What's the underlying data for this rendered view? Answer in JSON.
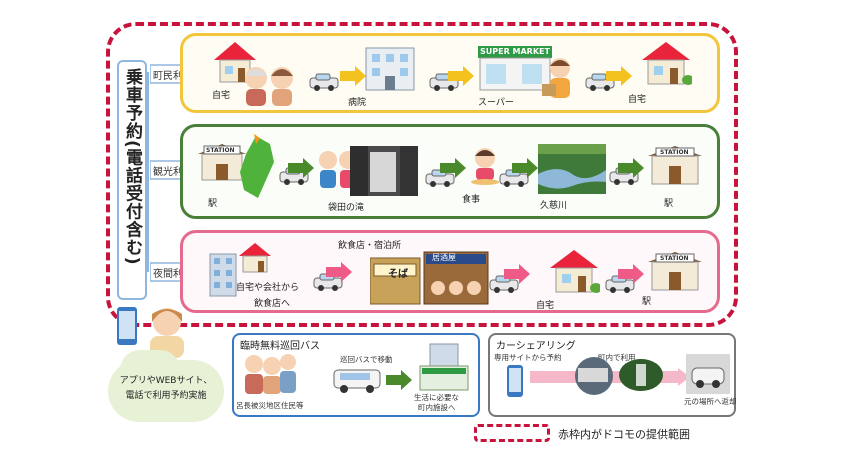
{
  "vertical_title": "乗車予約(電話受付含む)",
  "rows": [
    {
      "usage": "町民利用",
      "stops": [
        "自宅",
        "病院",
        "スーパー",
        "自宅"
      ],
      "sign": "SUPER MARKET"
    },
    {
      "usage": "観光利用",
      "stops": [
        "駅",
        "袋田の滝",
        "食事",
        "久慈川",
        "駅"
      ],
      "sign": "STATION"
    },
    {
      "usage": "夜間利用",
      "stops": [
        "自宅や会社から",
        "飲食店へ",
        "飲食店・宿泊所",
        "自宅",
        "駅"
      ],
      "sign": "居酒屋",
      "sign2": "そば"
    }
  ],
  "cloud_text": [
    "アプリやWEBサイト、",
    "電話で利用予約実施"
  ],
  "bus_box": {
    "title": "臨時無料巡回バス",
    "move": "巡回バスで移動",
    "residents": "呂長被災地区住民等",
    "dest": [
      "生活に必要な",
      "町内施設へ"
    ]
  },
  "car_box": {
    "title": "カーシェアリング",
    "reserve": "専用サイトから予約",
    "use": "町内で利用",
    "return": "元の場所へ返却"
  },
  "legend": "赤枠内がドコモの提供範囲",
  "colors": {
    "frame": "#c8143c",
    "row1": "#f2c63a",
    "row2": "#4a7f3a",
    "row3": "#e46b8e",
    "arrow_yellow": "#f3c21f",
    "arrow_green": "#4a8a2a",
    "arrow_pink": "#ef5a86"
  }
}
